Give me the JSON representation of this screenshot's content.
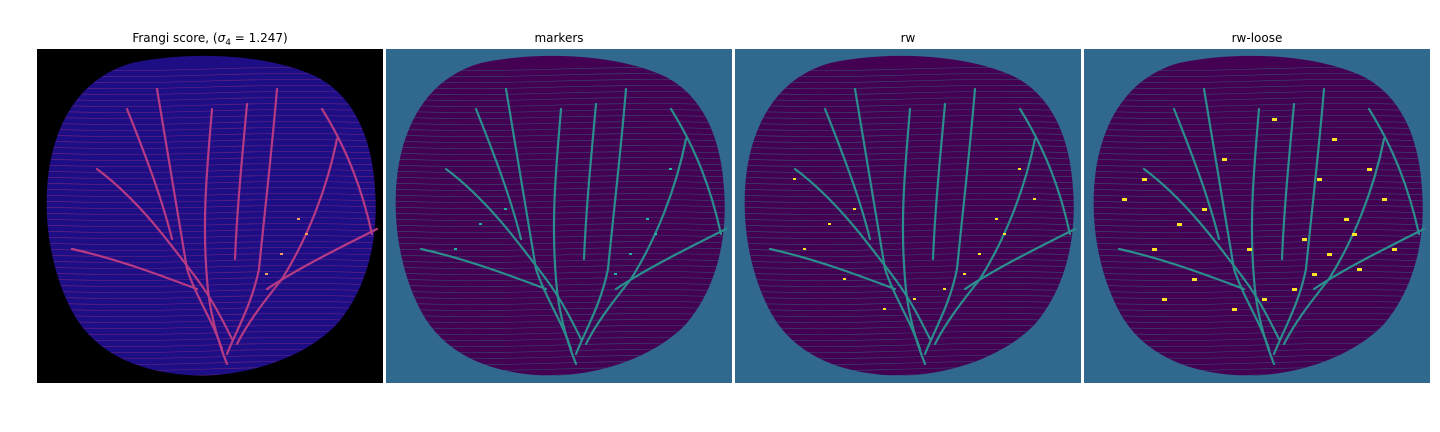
{
  "panels": [
    {
      "title_prefix": "Frangi score, (",
      "title_sigma": "σ",
      "title_sub": "4",
      "title_suffix": " = 1.247)",
      "background": "#000000",
      "blob_color": "#1d0e86",
      "line_color": "#b53a83",
      "accent_color": "#f7a05a"
    },
    {
      "title": "markers",
      "background": "#31688e",
      "blob_color": "#440154",
      "line_color": "#2b8e8c",
      "accent_color": "#20b7a0"
    },
    {
      "title": "rw",
      "background": "#31688e",
      "blob_color": "#440154",
      "line_color": "#2b8e8c",
      "accent_color": "#fde725"
    },
    {
      "title": "rw-loose",
      "background": "#31688e",
      "blob_color": "#440154",
      "line_color": "#2b8e8c",
      "accent_color": "#fde725"
    }
  ]
}
